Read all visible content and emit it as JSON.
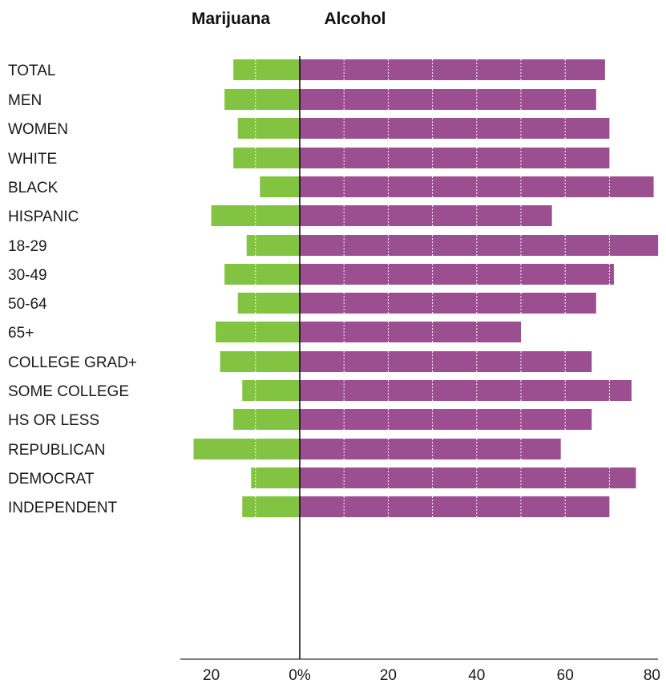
{
  "chart_data": {
    "type": "bar",
    "orientation": "horizontal-diverging",
    "series_headers": [
      "Marijuana",
      "Alcohol"
    ],
    "groups": [
      {
        "rows": [
          {
            "label": "TOTAL",
            "marijuana": 15,
            "alcohol": 69
          }
        ]
      },
      {
        "rows": [
          {
            "label": "MEN",
            "marijuana": 17,
            "alcohol": 67
          },
          {
            "label": "WOMEN",
            "marijuana": 14,
            "alcohol": 70
          }
        ]
      },
      {
        "rows": [
          {
            "label": "WHITE",
            "marijuana": 15,
            "alcohol": 70
          },
          {
            "label": "BLACK",
            "marijuana": 9,
            "alcohol": 80
          },
          {
            "label": "HISPANIC",
            "marijuana": 20,
            "alcohol": 57
          }
        ]
      },
      {
        "rows": [
          {
            "label": "18-29",
            "marijuana": 12,
            "alcohol": 81
          },
          {
            "label": "30-49",
            "marijuana": 17,
            "alcohol": 71
          },
          {
            "label": "50-64",
            "marijuana": 14,
            "alcohol": 67
          },
          {
            "label": "65+",
            "marijuana": 19,
            "alcohol": 50
          }
        ]
      },
      {
        "rows": [
          {
            "label": "COLLEGE GRAD+",
            "marijuana": 18,
            "alcohol": 66
          },
          {
            "label": "SOME COLLEGE",
            "marijuana": 13,
            "alcohol": 75
          },
          {
            "label": "HS OR LESS",
            "marijuana": 15,
            "alcohol": 66
          }
        ]
      },
      {
        "rows": [
          {
            "label": "REPUBLICAN",
            "marijuana": 24,
            "alcohol": 59
          },
          {
            "label": "DEMOCRAT",
            "marijuana": 11,
            "alcohol": 76
          },
          {
            "label": "INDEPENDENT",
            "marijuana": 13,
            "alcohol": 70
          }
        ]
      }
    ],
    "x_ticks": [
      {
        "value": -20,
        "label": "20"
      },
      {
        "value": 0,
        "label": "0%"
      },
      {
        "value": 20,
        "label": "20"
      },
      {
        "value": 40,
        "label": "40"
      },
      {
        "value": 60,
        "label": "60"
      },
      {
        "value": 80,
        "label": "80"
      }
    ],
    "xlim": [
      -27,
      81
    ],
    "gridlines_inside_bars": [
      -10,
      10,
      20,
      30,
      40,
      50,
      60,
      70
    ],
    "colors": {
      "marijuana": "#82c341",
      "alcohol": "#9b4f91",
      "axis": "#000000"
    }
  }
}
